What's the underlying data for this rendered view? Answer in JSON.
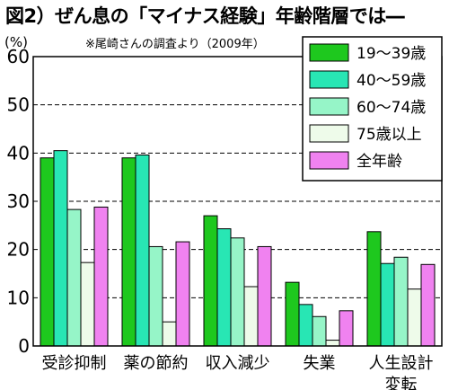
{
  "title": "図2）ぜん息の「マイナス経験」年齢階層では―",
  "unit_label": "(%)",
  "note": "※尾崎さんの調査より（2009年）",
  "chart_data": {
    "type": "bar",
    "categories": [
      [
        "受診抑制"
      ],
      [
        "薬の節約"
      ],
      [
        "収入減少"
      ],
      [
        "失業"
      ],
      [
        "人生設計",
        "変転"
      ]
    ],
    "series": [
      {
        "name": "19～39歳",
        "color": "#1ec81e",
        "values": [
          39.0,
          39.0,
          27.0,
          13.2,
          23.7
        ]
      },
      {
        "name": "40～59歳",
        "color": "#28e6b4",
        "values": [
          40.5,
          39.6,
          24.3,
          8.6,
          17.1
        ]
      },
      {
        "name": "60～74歳",
        "color": "#96f5c8",
        "values": [
          28.3,
          20.6,
          22.4,
          6.1,
          18.4
        ]
      },
      {
        "name": "75歳以上",
        "color": "#eefbea",
        "values": [
          17.3,
          5.0,
          12.3,
          1.2,
          11.8
        ]
      },
      {
        "name": "全年齢",
        "color": "#f082f0",
        "values": [
          28.8,
          21.6,
          20.6,
          7.3,
          16.9
        ]
      }
    ],
    "yticks": [
      0,
      10,
      20,
      30,
      40,
      50,
      60
    ],
    "ylim": [
      0,
      60
    ],
    "grid": "horizontal dashed",
    "legend": "top-right"
  }
}
